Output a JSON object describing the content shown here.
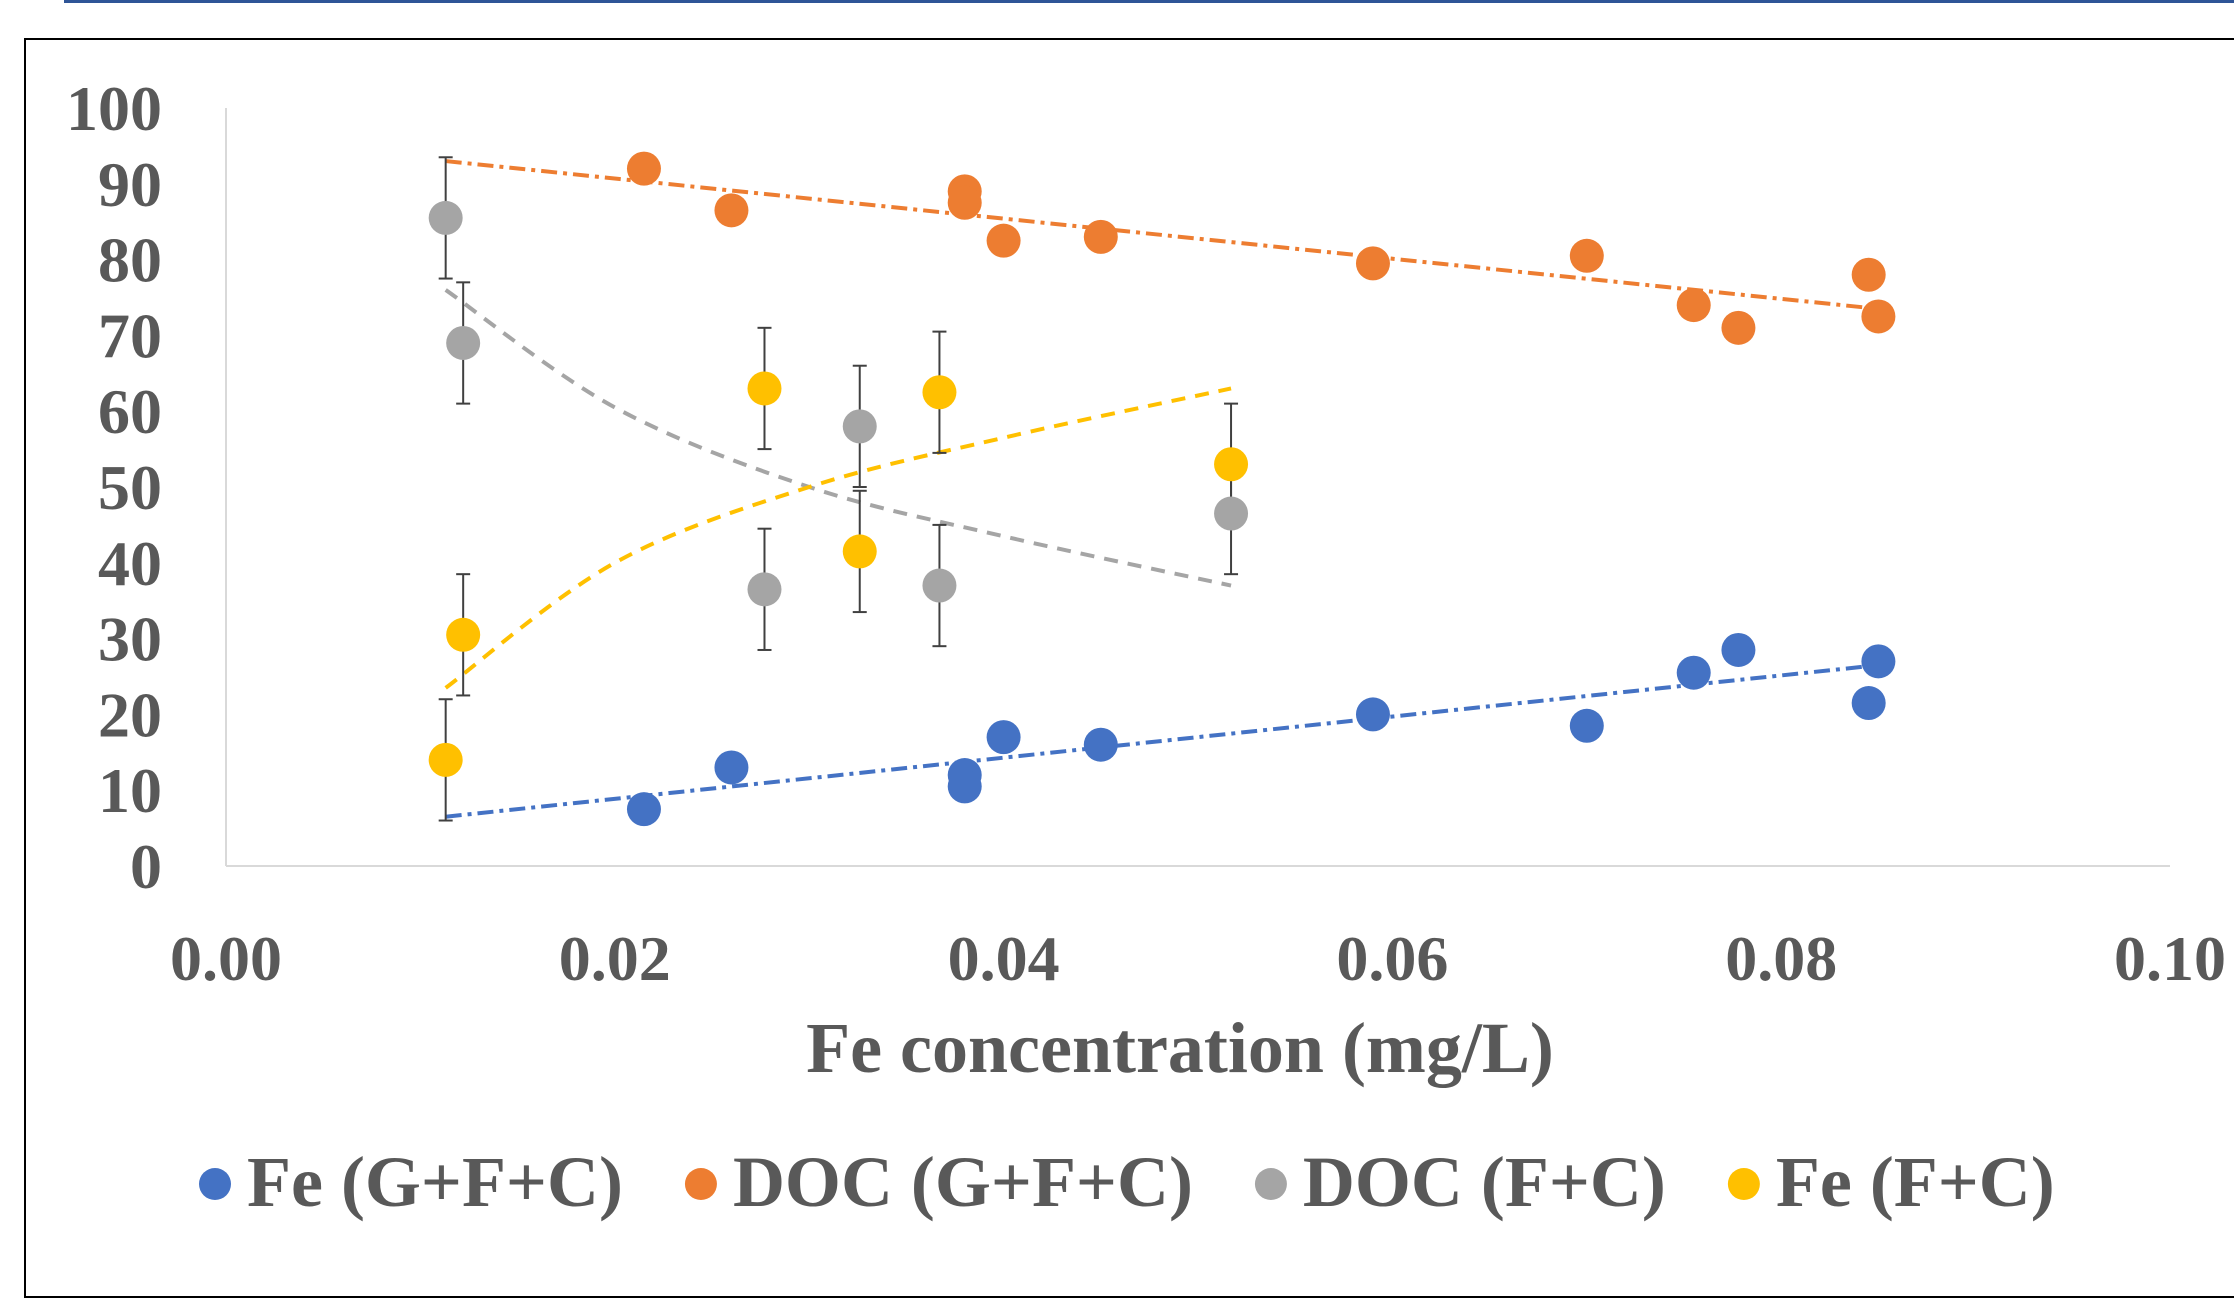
{
  "chart_data": {
    "type": "scatter",
    "title": "",
    "xlabel": "Fe concentration (mg/L)",
    "ylabel": "",
    "xlim": [
      0.0,
      0.1
    ],
    "ylim": [
      0,
      100
    ],
    "x_ticks": [
      "0.00",
      "0.02",
      "0.04",
      "0.06",
      "0.08",
      "0.10"
    ],
    "y_ticks": [
      "0",
      "10",
      "20",
      "30",
      "40",
      "50",
      "60",
      "70",
      "80",
      "90",
      "100"
    ],
    "grid": false,
    "legend_position": "bottom",
    "series": [
      {
        "name": "Fe (G+F+C)",
        "color": "#4472C4",
        "points": [
          [
            0.0215,
            7.5
          ],
          [
            0.026,
            13
          ],
          [
            0.038,
            12
          ],
          [
            0.038,
            10.5
          ],
          [
            0.04,
            17
          ],
          [
            0.045,
            16
          ],
          [
            0.059,
            20
          ],
          [
            0.07,
            18.5
          ],
          [
            0.0755,
            25.5
          ],
          [
            0.0778,
            28.5
          ],
          [
            0.0845,
            21.5
          ],
          [
            0.085,
            27
          ]
        ],
        "trendline": {
          "style": "dash-dot",
          "from": [
            0.0113,
            6.5
          ],
          "to": [
            0.085,
            26.5
          ]
        }
      },
      {
        "name": "DOC (G+F+C)",
        "color": "#ED7D31",
        "points": [
          [
            0.0215,
            92
          ],
          [
            0.026,
            86.5
          ],
          [
            0.038,
            89
          ],
          [
            0.038,
            87.5
          ],
          [
            0.04,
            82.5
          ],
          [
            0.045,
            83
          ],
          [
            0.059,
            79.5
          ],
          [
            0.07,
            80.5
          ],
          [
            0.0755,
            74
          ],
          [
            0.0778,
            71
          ],
          [
            0.0845,
            78
          ],
          [
            0.085,
            72.5
          ]
        ],
        "trendline": {
          "style": "dash-dot",
          "from": [
            0.0113,
            93
          ],
          "to": [
            0.085,
            73.5
          ]
        }
      },
      {
        "name": "DOC (F+C)",
        "color": "#A5A5A5",
        "points": [
          [
            0.0113,
            85.5
          ],
          [
            0.0122,
            69
          ],
          [
            0.0277,
            36.5
          ],
          [
            0.0326,
            58
          ],
          [
            0.0367,
            37
          ],
          [
            0.0517,
            46.5
          ]
        ],
        "errors": [
          8,
          8,
          8,
          8,
          8,
          8
        ],
        "trendline": {
          "style": "dash",
          "curve": [
            [
              0.0113,
              76
            ],
            [
              0.02,
              60.5
            ],
            [
              0.03,
              50
            ],
            [
              0.04,
              43.5
            ],
            [
              0.0517,
              37
            ]
          ]
        }
      },
      {
        "name": "Fe (F+C)",
        "color": "#FFC000",
        "points": [
          [
            0.0113,
            14
          ],
          [
            0.0122,
            30.5
          ],
          [
            0.0277,
            63
          ],
          [
            0.0326,
            41.5
          ],
          [
            0.0367,
            62.5
          ],
          [
            0.0517,
            53
          ]
        ],
        "errors": [
          8,
          8,
          8,
          8,
          8,
          8
        ],
        "trendline": {
          "style": "dash",
          "curve": [
            [
              0.0113,
              23.5
            ],
            [
              0.02,
              40
            ],
            [
              0.03,
              50
            ],
            [
              0.04,
              56.5
            ],
            [
              0.0517,
              63
            ]
          ]
        }
      }
    ]
  },
  "frame": {
    "top_rule_color": "#2F5597",
    "axis_color": "#D9D9D9",
    "error_bar_color": "#404040"
  }
}
